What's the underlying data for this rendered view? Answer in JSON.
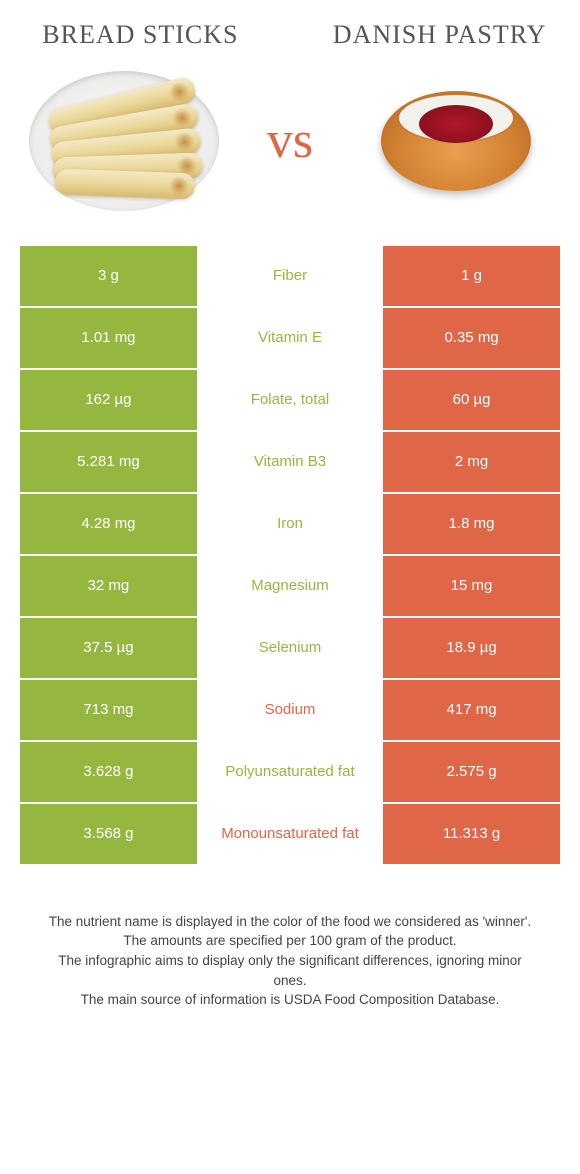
{
  "colors": {
    "left": "#95b73f",
    "right": "#e06648",
    "vs": "#e06648",
    "label_left": "#95b73f",
    "label_right": "#e06648"
  },
  "titles": {
    "left": "Bread sticks",
    "right": "Danish pastry"
  },
  "vs_text": "vs",
  "rows": [
    {
      "left": "3 g",
      "label": "Fiber",
      "right": "1 g",
      "winner": "left"
    },
    {
      "left": "1.01 mg",
      "label": "Vitamin E",
      "right": "0.35 mg",
      "winner": "left"
    },
    {
      "left": "162 µg",
      "label": "Folate, total",
      "right": "60 µg",
      "winner": "left"
    },
    {
      "left": "5.281 mg",
      "label": "Vitamin B3",
      "right": "2 mg",
      "winner": "left"
    },
    {
      "left": "4.28 mg",
      "label": "Iron",
      "right": "1.8 mg",
      "winner": "left"
    },
    {
      "left": "32 mg",
      "label": "Magnesium",
      "right": "15 mg",
      "winner": "left"
    },
    {
      "left": "37.5 µg",
      "label": "Selenium",
      "right": "18.9 µg",
      "winner": "left"
    },
    {
      "left": "713 mg",
      "label": "Sodium",
      "right": "417 mg",
      "winner": "right"
    },
    {
      "left": "3.628 g",
      "label": "Polyunsaturated fat",
      "right": "2.575 g",
      "winner": "left"
    },
    {
      "left": "3.568 g",
      "label": "Monounsaturated fat",
      "right": "11.313 g",
      "winner": "right"
    }
  ],
  "footer": {
    "line1": "The nutrient name is displayed in the color of the food we considered as 'winner'.",
    "line2": "The amounts are specified per 100 gram of the product.",
    "line3": "The infographic aims to display only the significant differences, ignoring minor ones.",
    "line4": "The main source of information is USDA Food Composition Database."
  }
}
